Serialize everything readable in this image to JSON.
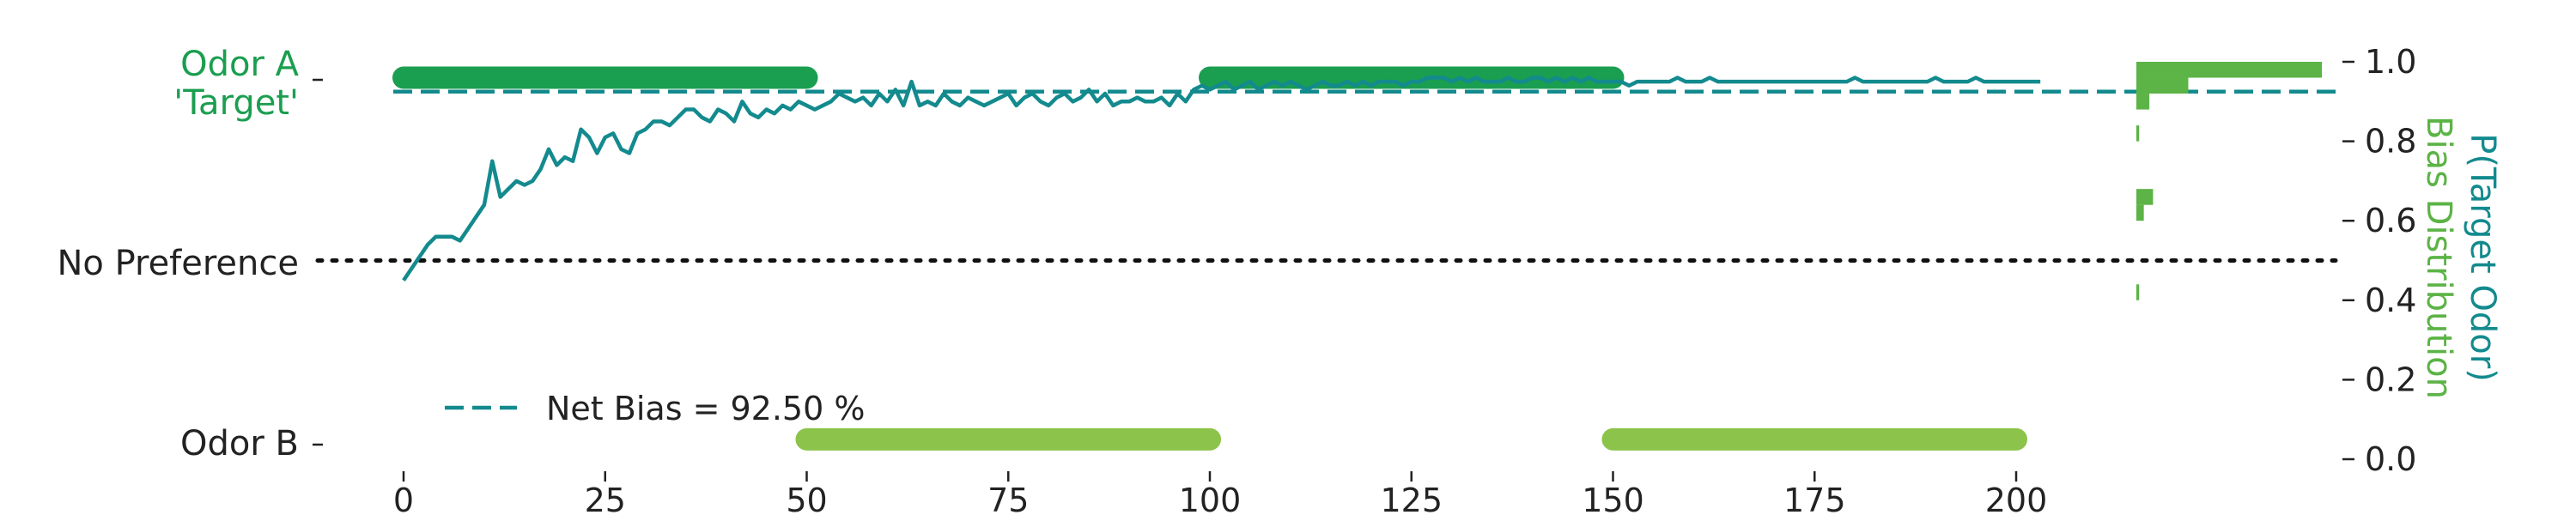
{
  "chart_data": {
    "type": "line",
    "x_ticks": [
      "0",
      "25",
      "50",
      "75",
      "100",
      "125",
      "150",
      "175",
      "200"
    ],
    "y_ticks": [
      "0.0",
      "0.2",
      "0.4",
      "0.6",
      "0.8",
      "1.0"
    ],
    "xlim": [
      -3,
      240
    ],
    "ylim": [
      0,
      1.02
    ],
    "xlabel": "",
    "left_tick_labels": {
      "odor_a_line1": "Odor A",
      "odor_a_line2": "'Target'",
      "no_preference": "No Preference",
      "odor_b": "Odor B"
    },
    "right_ylabel_1": "P(Target Odor)",
    "right_ylabel_2": "Bias Distribution",
    "legend": {
      "label": "Net Bias = 92.50 %",
      "placement": "lower-left"
    },
    "net_bias": 0.925,
    "no_preference_level": 0.5,
    "odor_a_blocks": [
      [
        0,
        50
      ],
      [
        100,
        150
      ]
    ],
    "odor_b_blocks": [
      [
        50,
        100
      ],
      [
        150,
        200
      ]
    ],
    "odor_a_y": 0.96,
    "odor_b_y": 0.05,
    "p_target_odor": {
      "x_start": 0,
      "values": [
        0.45,
        0.48,
        0.51,
        0.54,
        0.56,
        0.56,
        0.56,
        0.55,
        0.58,
        0.61,
        0.64,
        0.75,
        0.66,
        0.68,
        0.7,
        0.69,
        0.7,
        0.73,
        0.78,
        0.74,
        0.76,
        0.75,
        0.83,
        0.81,
        0.77,
        0.81,
        0.82,
        0.78,
        0.77,
        0.82,
        0.83,
        0.85,
        0.85,
        0.84,
        0.86,
        0.88,
        0.88,
        0.86,
        0.85,
        0.88,
        0.87,
        0.85,
        0.9,
        0.87,
        0.86,
        0.88,
        0.87,
        0.89,
        0.88,
        0.9,
        0.89,
        0.88,
        0.89,
        0.9,
        0.92,
        0.91,
        0.9,
        0.91,
        0.89,
        0.92,
        0.9,
        0.93,
        0.89,
        0.95,
        0.89,
        0.9,
        0.89,
        0.92,
        0.9,
        0.89,
        0.91,
        0.9,
        0.89,
        0.9,
        0.91,
        0.92,
        0.89,
        0.91,
        0.92,
        0.9,
        0.89,
        0.91,
        0.92,
        0.9,
        0.91,
        0.93,
        0.9,
        0.92,
        0.89,
        0.9,
        0.9,
        0.91,
        0.9,
        0.9,
        0.91,
        0.89,
        0.92,
        0.9,
        0.93,
        0.94,
        0.93,
        0.94,
        0.95,
        0.93,
        0.94,
        0.95,
        0.93,
        0.94,
        0.95,
        0.94,
        0.95,
        0.94,
        0.93,
        0.94,
        0.95,
        0.94,
        0.94,
        0.95,
        0.94,
        0.95,
        0.94,
        0.95,
        0.95,
        0.95,
        0.94,
        0.95,
        0.95,
        0.96,
        0.96,
        0.96,
        0.95,
        0.96,
        0.95,
        0.96,
        0.95,
        0.95,
        0.95,
        0.96,
        0.95,
        0.95,
        0.96,
        0.96,
        0.95,
        0.96,
        0.95,
        0.96,
        0.95,
        0.96,
        0.95,
        0.95,
        0.95,
        0.95,
        0.94,
        0.95,
        0.95,
        0.95,
        0.95,
        0.95,
        0.96,
        0.95,
        0.95,
        0.95,
        0.96,
        0.95,
        0.95,
        0.95,
        0.95,
        0.95,
        0.95,
        0.95,
        0.95,
        0.95,
        0.95,
        0.95,
        0.95,
        0.95,
        0.95,
        0.95,
        0.95,
        0.95,
        0.96,
        0.95,
        0.95,
        0.95,
        0.95,
        0.95,
        0.95,
        0.95,
        0.95,
        0.95,
        0.96,
        0.95,
        0.95,
        0.95,
        0.95,
        0.96,
        0.95,
        0.95,
        0.95,
        0.95,
        0.95,
        0.95,
        0.95,
        0.95
      ]
    },
    "bias_distribution": {
      "type": "horizontal-histogram",
      "bins": [
        {
          "y_low": 0.96,
          "y_high": 1.0,
          "rel_count": 1.0
        },
        {
          "y_low": 0.92,
          "y_high": 0.96,
          "rel_count": 0.28
        },
        {
          "y_low": 0.88,
          "y_high": 0.92,
          "rel_count": 0.07
        },
        {
          "y_low": 0.8,
          "y_high": 0.84,
          "rel_count": 0.015
        },
        {
          "y_low": 0.64,
          "y_high": 0.68,
          "rel_count": 0.09
        },
        {
          "y_low": 0.6,
          "y_high": 0.64,
          "rel_count": 0.04
        },
        {
          "y_low": 0.4,
          "y_high": 0.44,
          "rel_count": 0.015
        }
      ]
    },
    "colors": {
      "odor_a_green": "#1a9e50",
      "odor_b_green": "#8cc34a",
      "teal": "#138a8e",
      "histogram_green": "#5cb346",
      "text": "#222222",
      "dotted_line": "#111111"
    }
  }
}
